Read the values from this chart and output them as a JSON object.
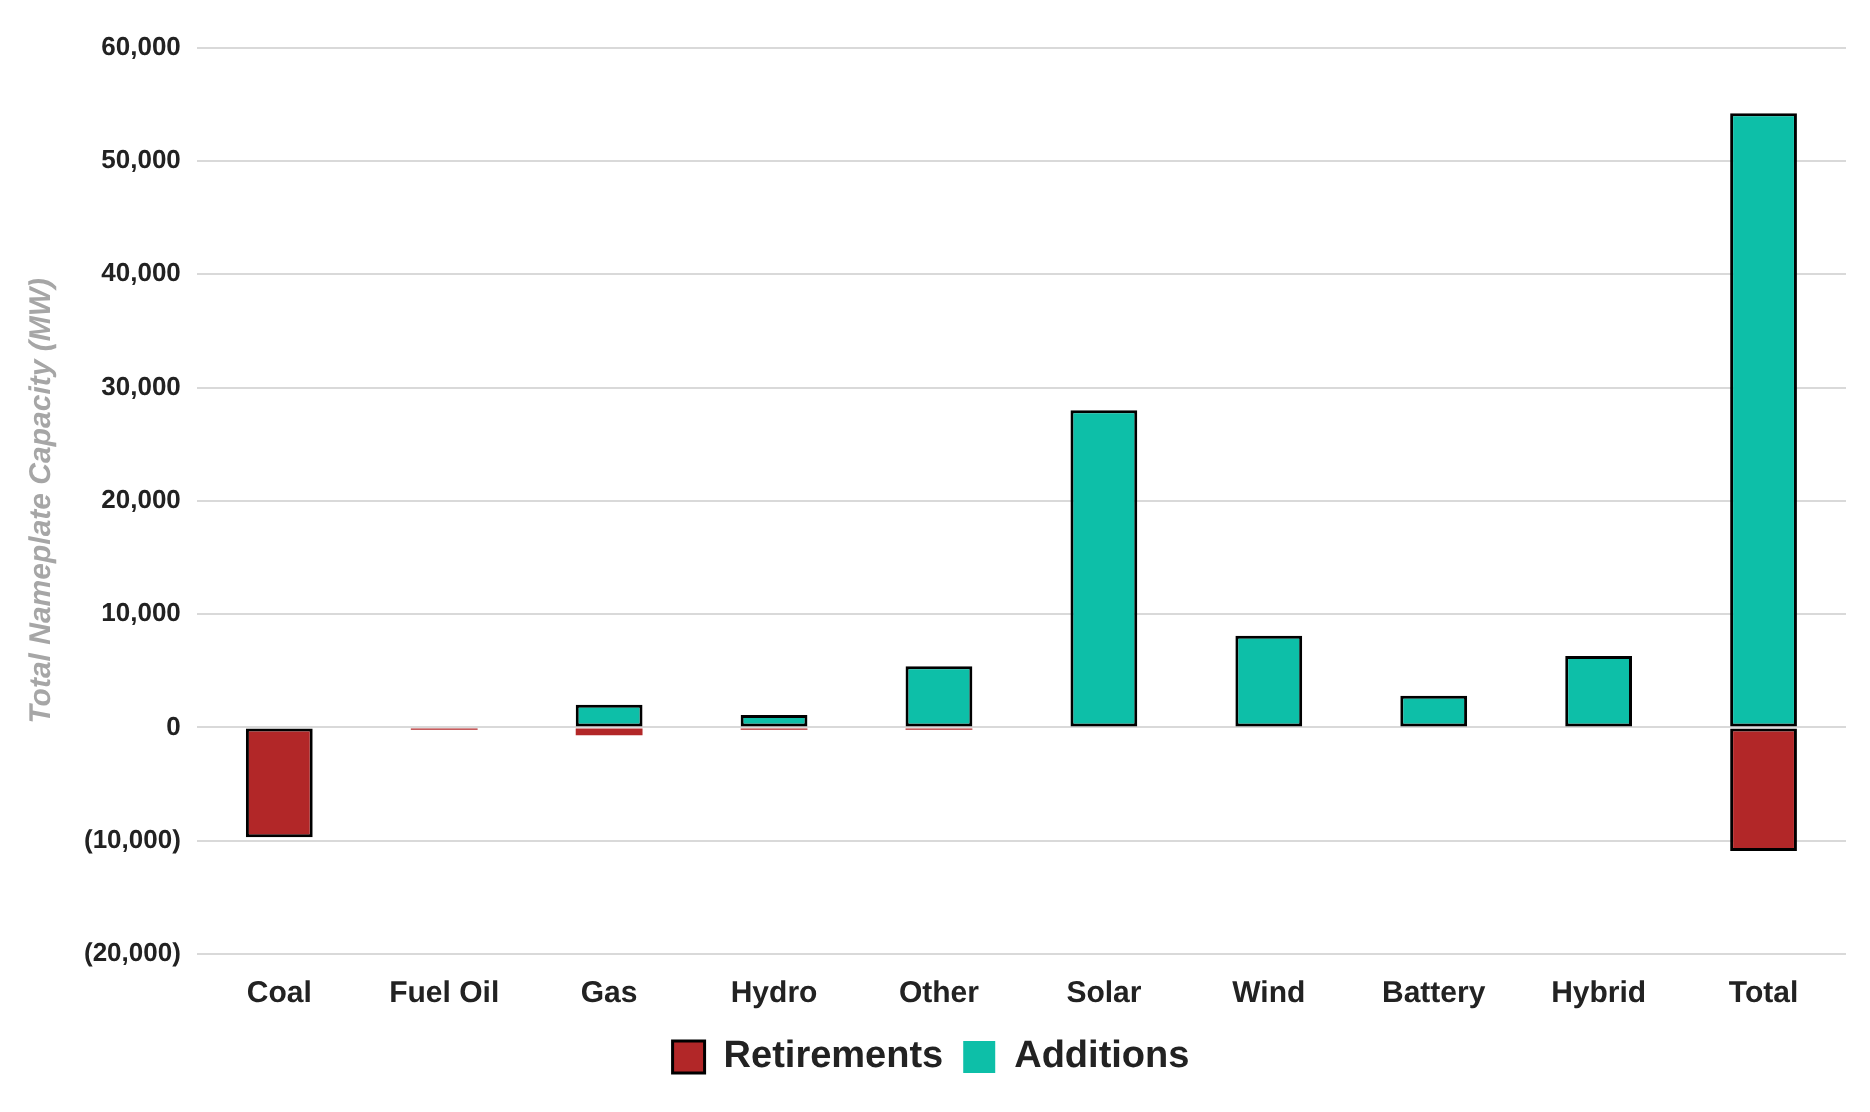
{
  "chart_data": {
    "type": "bar",
    "stacked": true,
    "ylabel": "Total Nameplate Capacity (MW)",
    "categories": [
      "Coal",
      "Fuel Oil",
      "Gas",
      "Hydro",
      "Other",
      "Solar",
      "Wind",
      "Battery",
      "Hybrid",
      "Total"
    ],
    "series": [
      {
        "name": "Retirements",
        "color": "#b22728",
        "values": [
          -9700,
          -200,
          -700,
          -200,
          -200,
          0,
          0,
          0,
          0,
          -10900
        ]
      },
      {
        "name": "Additions",
        "color": "#0dbfa8",
        "values": [
          0,
          0,
          2000,
          1100,
          5400,
          28000,
          8100,
          2800,
          6300,
          54200
        ]
      }
    ],
    "ylim": [
      -20000,
      60000
    ],
    "yticks": [
      {
        "value": -20000,
        "label": "(20,000)"
      },
      {
        "value": -10000,
        "label": "(10,000)"
      },
      {
        "value": 0,
        "label": "0"
      },
      {
        "value": 10000,
        "label": "10,000"
      },
      {
        "value": 20000,
        "label": "20,000"
      },
      {
        "value": 30000,
        "label": "30,000"
      },
      {
        "value": 40000,
        "label": "40,000"
      },
      {
        "value": 50000,
        "label": "50,000"
      },
      {
        "value": 60000,
        "label": "60,000"
      }
    ],
    "grid": "y",
    "legend": "bottom"
  }
}
